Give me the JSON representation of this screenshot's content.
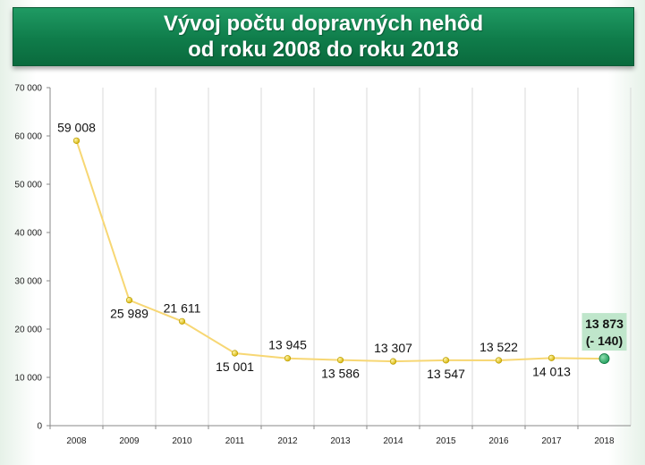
{
  "title_lines": [
    "Vývoj počtu dopravných nehôd",
    "od roku 2008 do roku 2018"
  ],
  "colors": {
    "line": "#f7d774",
    "marker": "#d4b000",
    "highlight_marker": "#1e9a5a",
    "highlight_box": "#bfe6cb",
    "banner": "#0f7c4a"
  },
  "chart_data": {
    "type": "line",
    "title": "Vývoj počtu dopravných nehôd od roku 2008 do roku 2018",
    "xlabel": "",
    "ylabel": "",
    "ylim": [
      0,
      70000
    ],
    "yticks": [
      "0",
      "10 000",
      "20 000",
      "30 000",
      "40 000",
      "50 000",
      "60 000",
      "70 000"
    ],
    "grid": "vertical",
    "categories": [
      "2008",
      "2009",
      "2010",
      "2011",
      "2012",
      "2013",
      "2014",
      "2015",
      "2016",
      "2017",
      "2018"
    ],
    "series": [
      {
        "values": [
          59008,
          25989,
          21611,
          15001,
          13945,
          13586,
          13307,
          13547,
          13522,
          14013,
          13873
        ]
      }
    ],
    "data_labels": [
      "59 008",
      "25 989",
      "21 611",
      "15 001",
      "13 945",
      "13 586",
      "13 307",
      "13 547",
      "13 522",
      "14 013",
      "13 873"
    ],
    "label_positions": [
      "above",
      "below",
      "above",
      "below",
      "above",
      "below",
      "above",
      "below",
      "above",
      "below",
      "above"
    ],
    "highlight": {
      "index": 10,
      "label": "13 873",
      "sublabel": "(- 140)"
    }
  }
}
